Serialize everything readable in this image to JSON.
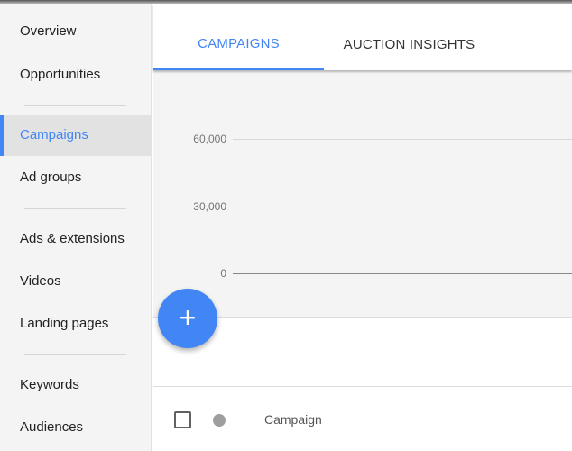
{
  "sidebar": {
    "items": [
      {
        "label": "Overview",
        "selected": false
      },
      {
        "label": "Opportunities",
        "selected": false
      },
      {
        "label": "Campaigns",
        "selected": true
      },
      {
        "label": "Ad groups",
        "selected": false
      },
      {
        "label": "Ads & extensions",
        "selected": false
      },
      {
        "label": "Videos",
        "selected": false
      },
      {
        "label": "Landing pages",
        "selected": false
      },
      {
        "label": "Keywords",
        "selected": false
      },
      {
        "label": "Audiences",
        "selected": false
      }
    ]
  },
  "tabs": [
    {
      "label": "CAMPAIGNS",
      "active": true
    },
    {
      "label": "AUCTION INSIGHTS",
      "active": false
    }
  ],
  "chart_data": {
    "type": "line",
    "yticks": [
      "60,000",
      "30,000",
      "0"
    ],
    "ylim": [
      0,
      60000
    ],
    "grid": true,
    "series": []
  },
  "fab": {
    "icon": "plus-icon",
    "label": "+"
  },
  "table": {
    "columns": [
      "Campaign"
    ]
  },
  "colors": {
    "accent": "#4285f4",
    "fab": "#4285f4"
  }
}
